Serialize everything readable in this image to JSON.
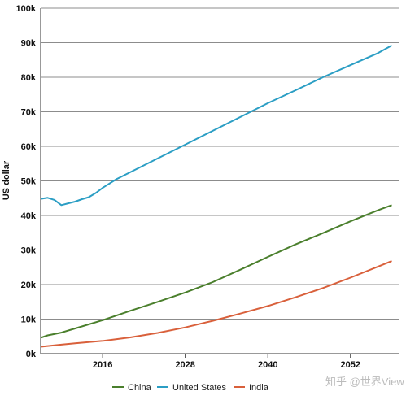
{
  "chart_data": {
    "type": "line",
    "ylabel": "US dollar",
    "xlabel": "",
    "ylim": [
      0,
      100000
    ],
    "xlim": [
      2007,
      2059
    ],
    "y_ticks": [
      0,
      10000,
      20000,
      30000,
      40000,
      50000,
      60000,
      70000,
      80000,
      90000,
      100000
    ],
    "y_tick_labels": [
      "0k",
      "10k",
      "20k",
      "30k",
      "40k",
      "50k",
      "60k",
      "70k",
      "80k",
      "90k",
      "100k"
    ],
    "x_ticks": [
      2016,
      2028,
      2040,
      2052
    ],
    "x_tick_labels": [
      "2016",
      "2028",
      "2040",
      "2052"
    ],
    "grid": "horizontal",
    "legend_position": "bottom",
    "series": [
      {
        "name": "China",
        "color": "#4a7f2c",
        "points": [
          [
            2007,
            4600
          ],
          [
            2008,
            5300
          ],
          [
            2010,
            6100
          ],
          [
            2012,
            7300
          ],
          [
            2016,
            9700
          ],
          [
            2020,
            12400
          ],
          [
            2024,
            15000
          ],
          [
            2028,
            17700
          ],
          [
            2032,
            20700
          ],
          [
            2036,
            24300
          ],
          [
            2040,
            28000
          ],
          [
            2044,
            31600
          ],
          [
            2048,
            34900
          ],
          [
            2052,
            38300
          ],
          [
            2056,
            41500
          ],
          [
            2058,
            43000
          ]
        ]
      },
      {
        "name": "United States",
        "color": "#2b9ec4",
        "points": [
          [
            2007,
            44800
          ],
          [
            2008,
            45100
          ],
          [
            2009,
            44500
          ],
          [
            2010,
            43000
          ],
          [
            2011,
            43500
          ],
          [
            2012,
            44000
          ],
          [
            2013,
            44700
          ],
          [
            2014,
            45300
          ],
          [
            2015,
            46500
          ],
          [
            2016,
            48000
          ],
          [
            2018,
            50500
          ],
          [
            2020,
            52500
          ],
          [
            2024,
            56500
          ],
          [
            2028,
            60500
          ],
          [
            2032,
            64500
          ],
          [
            2036,
            68500
          ],
          [
            2040,
            72500
          ],
          [
            2044,
            76200
          ],
          [
            2048,
            80000
          ],
          [
            2052,
            83500
          ],
          [
            2056,
            87000
          ],
          [
            2058,
            89200
          ]
        ]
      },
      {
        "name": "India",
        "color": "#d9603b",
        "points": [
          [
            2007,
            2000
          ],
          [
            2008,
            2200
          ],
          [
            2010,
            2600
          ],
          [
            2012,
            3000
          ],
          [
            2016,
            3700
          ],
          [
            2020,
            4700
          ],
          [
            2024,
            6000
          ],
          [
            2028,
            7600
          ],
          [
            2032,
            9500
          ],
          [
            2036,
            11600
          ],
          [
            2040,
            13800
          ],
          [
            2044,
            16300
          ],
          [
            2048,
            19000
          ],
          [
            2052,
            22000
          ],
          [
            2056,
            25200
          ],
          [
            2058,
            26800
          ]
        ]
      }
    ]
  },
  "watermark": "知乎 @世界View"
}
